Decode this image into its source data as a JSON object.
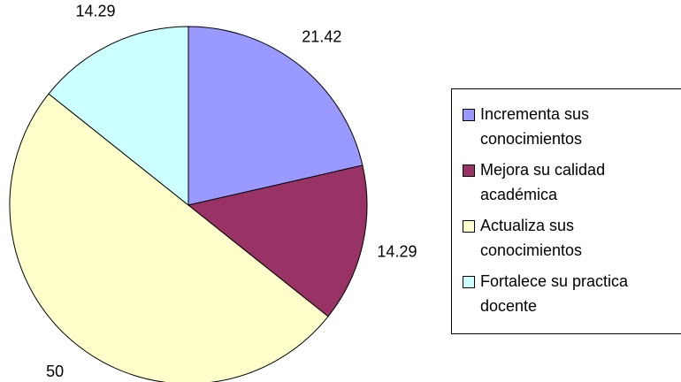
{
  "chart_data": {
    "type": "pie",
    "categories": [
      "Incrementa sus conocimientos",
      "Mejora su calidad académica",
      "Actualiza sus conocimientos",
      "Fortalece su practica docente"
    ],
    "values": [
      21.42,
      14.29,
      50,
      14.29
    ],
    "colors": [
      "#9999ff",
      "#993366",
      "#ffffcc",
      "#ccffff"
    ],
    "legend": "right"
  }
}
